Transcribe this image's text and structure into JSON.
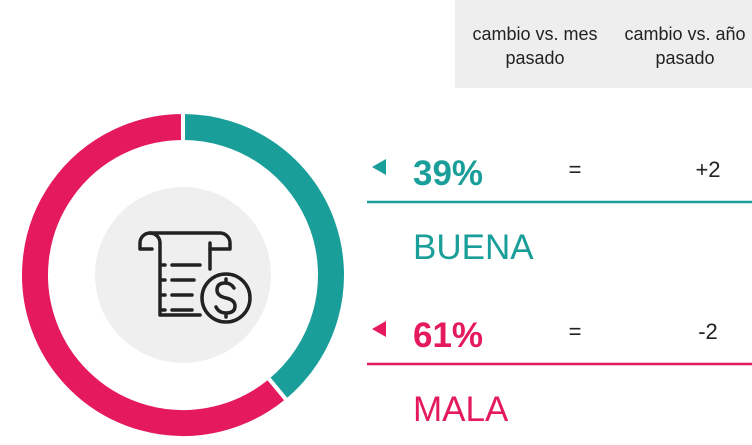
{
  "chart_data": {
    "type": "pie",
    "donut": true,
    "categories": [
      "BUENA",
      "MALA"
    ],
    "values": [
      39,
      61
    ],
    "value_labels": [
      "39%",
      "61%"
    ],
    "colors": [
      "#1a9e99",
      "#e5195e"
    ],
    "columns": [
      "cambio vs. mes pasado",
      "cambio vs. año pasado"
    ],
    "changes": [
      [
        "=",
        "+2"
      ],
      [
        "=",
        "-2"
      ]
    ]
  }
}
